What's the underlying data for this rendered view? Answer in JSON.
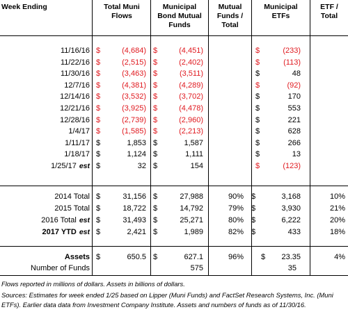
{
  "headers": {
    "week": "Week Ending",
    "total_muni": [
      "Total Muni",
      "Flows"
    ],
    "muni_bond": [
      "Municipal",
      "Bond Mutual",
      "Funds"
    ],
    "mutual_pct": [
      "Mutual",
      "Funds /",
      "Total"
    ],
    "muni_etfs": [
      "Municipal",
      "ETFs"
    ],
    "etf_pct": [
      "ETF /",
      "Total"
    ]
  },
  "weekly_rows": [
    {
      "date": "11/16/16",
      "est": "",
      "total": "(4,684)",
      "total_neg": true,
      "mutual": "(4,451)",
      "mutual_neg": true,
      "etf": "(233)",
      "etf_neg": true
    },
    {
      "date": "11/22/16",
      "est": "",
      "total": "(2,515)",
      "total_neg": true,
      "mutual": "(2,402)",
      "mutual_neg": true,
      "etf": "(113)",
      "etf_neg": true
    },
    {
      "date": "11/30/16",
      "est": "",
      "total": "(3,463)",
      "total_neg": true,
      "mutual": "(3,511)",
      "mutual_neg": true,
      "etf": "48",
      "etf_neg": false
    },
    {
      "date": "12/7/16",
      "est": "",
      "total": "(4,381)",
      "total_neg": true,
      "mutual": "(4,289)",
      "mutual_neg": true,
      "etf": "(92)",
      "etf_neg": true
    },
    {
      "date": "12/14/16",
      "est": "",
      "total": "(3,532)",
      "total_neg": true,
      "mutual": "(3,702)",
      "mutual_neg": true,
      "etf": "170",
      "etf_neg": false
    },
    {
      "date": "12/21/16",
      "est": "",
      "total": "(3,925)",
      "total_neg": true,
      "mutual": "(4,478)",
      "mutual_neg": true,
      "etf": "553",
      "etf_neg": false
    },
    {
      "date": "12/28/16",
      "est": "",
      "total": "(2,739)",
      "total_neg": true,
      "mutual": "(2,960)",
      "mutual_neg": true,
      "etf": "221",
      "etf_neg": false
    },
    {
      "date": "1/4/17",
      "est": "",
      "total": "(1,585)",
      "total_neg": true,
      "mutual": "(2,213)",
      "mutual_neg": true,
      "etf": "628",
      "etf_neg": false
    },
    {
      "date": "1/11/17",
      "est": "",
      "total": "1,853",
      "total_neg": false,
      "mutual": "1,587",
      "mutual_neg": false,
      "etf": "266",
      "etf_neg": false
    },
    {
      "date": "1/18/17",
      "est": "",
      "total": "1,124",
      "total_neg": false,
      "mutual": "1,111",
      "mutual_neg": false,
      "etf": "13",
      "etf_neg": false
    },
    {
      "date": "1/25/17",
      "est": "est",
      "total": "32",
      "total_neg": false,
      "mutual": "154",
      "mutual_neg": false,
      "etf": "(123)",
      "etf_neg": true
    }
  ],
  "annual_rows": [
    {
      "label": "2014 Total",
      "est": "",
      "bold": false,
      "total": "31,156",
      "mutual": "27,988",
      "mutual_pct": "90%",
      "etf": "3,168",
      "etf_pct": "10%"
    },
    {
      "label": "2015 Total",
      "est": "",
      "bold": false,
      "total": "18,722",
      "mutual": "14,792",
      "mutual_pct": "79%",
      "etf": "3,930",
      "etf_pct": "21%"
    },
    {
      "label": "2016 Total",
      "est": "est",
      "bold": false,
      "total": "31,493",
      "mutual": "25,271",
      "mutual_pct": "80%",
      "etf": "6,222",
      "etf_pct": "20%"
    },
    {
      "label": "2017 YTD",
      "est": "est",
      "bold": true,
      "total": "2,421",
      "mutual": "1,989",
      "mutual_pct": "82%",
      "etf": "433",
      "etf_pct": "18%"
    }
  ],
  "assets": {
    "label": "Assets",
    "total": "650.5",
    "mutual": "627.1",
    "mutual_pct": "96%",
    "etf": "23.35",
    "etf_pct": "4%"
  },
  "funds": {
    "label": "Number of Funds",
    "mutual": "575",
    "etf": "35"
  },
  "currency_symbol": "$",
  "footnotes": [
    "Flows reported in millions of dollars. Assets in billions of dollars.",
    "Sources: Estimates for week ended 1/25 based on Lipper (Muni Funds) and FactSet Research Systems, Inc. (Muni",
    "ETFs). Earlier data data from Investment Company Institute. Assets and numbers of funds as of 11/30/16."
  ],
  "colors": {
    "negative": "#e0191f",
    "text": "#000000"
  }
}
